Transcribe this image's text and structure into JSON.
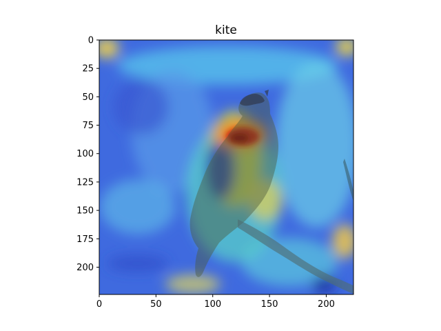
{
  "figure": {
    "title": "kite",
    "image_subject": "bird of prey perched on a branch with a class-activation heatmap overlay (jet colormap)",
    "colormap": "jet",
    "overlay_colors": {
      "background": "#3a63d9",
      "hot_spot": "#a50000",
      "warm": "#f2c21a",
      "cool": "#52dbe0"
    },
    "x_axis": {
      "ticks": [
        "0",
        "50",
        "100",
        "150",
        "200"
      ],
      "range": [
        0,
        224
      ]
    },
    "y_axis": {
      "ticks": [
        "0",
        "25",
        "50",
        "75",
        "100",
        "125",
        "150",
        "175",
        "200"
      ],
      "range": [
        0,
        224
      ],
      "inverted": true
    }
  }
}
